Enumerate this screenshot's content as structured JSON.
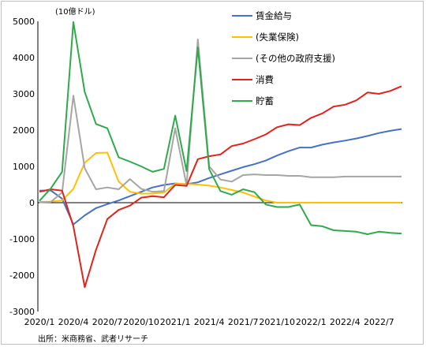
{
  "chart_data": {
    "type": "line",
    "unit_label": "(10億ドル)",
    "source": "出所：米商務省、武者リサーチ",
    "ylim": [
      -3000,
      5000
    ],
    "yticks": [
      -3000,
      -2000,
      -1000,
      0,
      1000,
      2000,
      3000,
      4000,
      5000
    ],
    "x_tick_labels": [
      "2020/1",
      "2020/4",
      "2020/7",
      "2020/10",
      "2021/1",
      "2021/4",
      "2021/7",
      "2021/10",
      "2022/1",
      "2022/4",
      "2022/7"
    ],
    "x": [
      "2020/1",
      "2020/2",
      "2020/3",
      "2020/4",
      "2020/5",
      "2020/6",
      "2020/7",
      "2020/8",
      "2020/9",
      "2020/10",
      "2020/11",
      "2020/12",
      "2021/1",
      "2021/2",
      "2021/3",
      "2021/4",
      "2021/5",
      "2021/6",
      "2021/7",
      "2021/8",
      "2021/9",
      "2021/10",
      "2021/11",
      "2021/12",
      "2022/1",
      "2022/2",
      "2022/3",
      "2022/4",
      "2022/5",
      "2022/6",
      "2022/7",
      "2022/8",
      "2022/9"
    ],
    "legend_position": "top-right",
    "grid": false,
    "series": [
      {
        "name": "賃金給与",
        "color": "#4472c4",
        "values": [
          330,
          340,
          110,
          -600,
          -350,
          -150,
          -40,
          60,
          180,
          300,
          420,
          490,
          530,
          510,
          560,
          680,
          780,
          880,
          980,
          1060,
          1160,
          1300,
          1420,
          1520,
          1520,
          1600,
          1660,
          1710,
          1770,
          1840,
          1920,
          1980,
          2030
        ]
      },
      {
        "name": "(失業保険)",
        "color": "#ffc000",
        "values": [
          20,
          30,
          60,
          380,
          1100,
          1370,
          1380,
          580,
          300,
          250,
          250,
          280,
          520,
          520,
          500,
          470,
          420,
          350,
          280,
          170,
          60,
          0,
          0,
          0,
          0,
          0,
          0,
          0,
          0,
          0,
          0,
          0,
          0
        ]
      },
      {
        "name": "(その他の政府支援)",
        "color": "#a5a5a5",
        "values": [
          10,
          20,
          280,
          2950,
          950,
          370,
          420,
          370,
          650,
          380,
          300,
          320,
          2050,
          480,
          4500,
          1000,
          640,
          580,
          760,
          780,
          760,
          760,
          740,
          740,
          700,
          700,
          700,
          720,
          720,
          720,
          720,
          720,
          720
        ]
      },
      {
        "name": "消費",
        "color": "#e0241b",
        "values": [
          300,
          370,
          330,
          -650,
          -2330,
          -1300,
          -450,
          -200,
          -80,
          140,
          180,
          150,
          490,
          460,
          1200,
          1280,
          1330,
          1560,
          1630,
          1750,
          1880,
          2080,
          2160,
          2140,
          2340,
          2460,
          2650,
          2700,
          2820,
          3040,
          3000,
          3080,
          3210
        ]
      },
      {
        "name": "貯蓄",
        "color": "#2eaa4b",
        "values": [
          50,
          390,
          850,
          4980,
          3050,
          2170,
          2050,
          1250,
          1130,
          1000,
          850,
          930,
          2400,
          870,
          4280,
          920,
          320,
          220,
          370,
          290,
          -50,
          -120,
          -120,
          -50,
          -620,
          -650,
          -760,
          -780,
          -800,
          -870,
          -800,
          -830,
          -850
        ]
      }
    ]
  }
}
